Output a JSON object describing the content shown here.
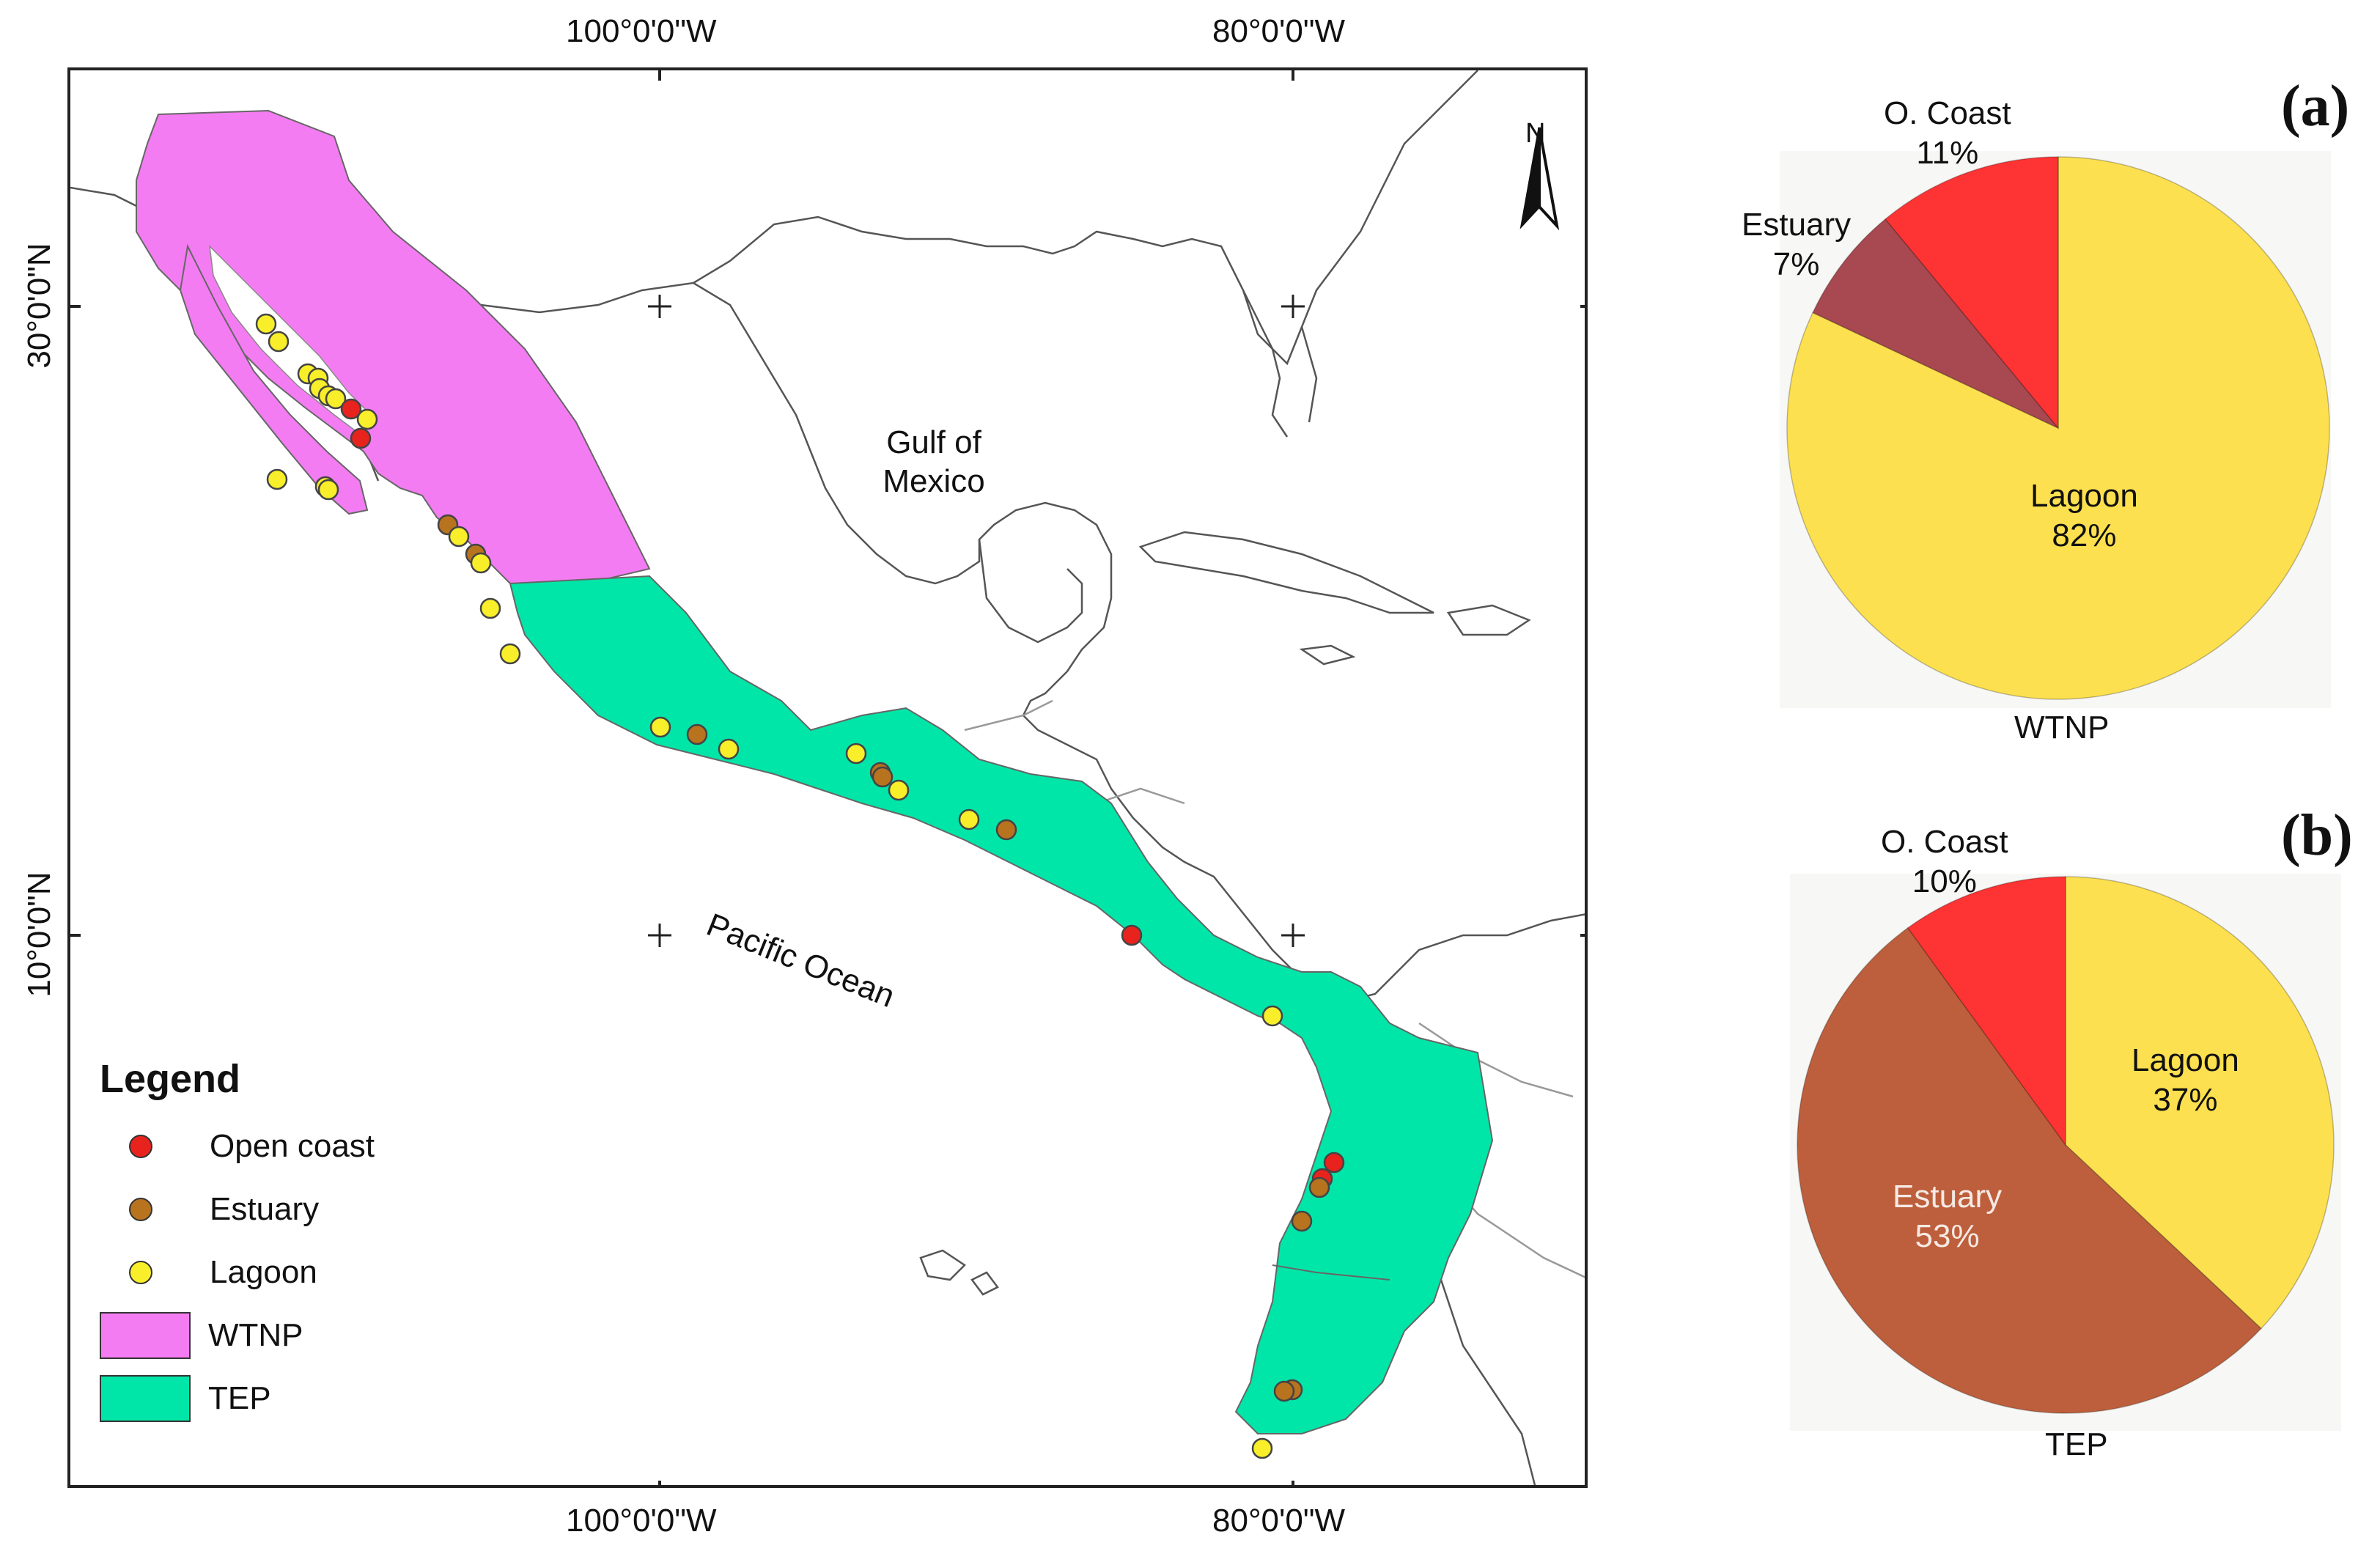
{
  "axes": {
    "lon_100": "100°0'0\"W",
    "lon_80": "80°0'0\"W",
    "lat_30": "30°0'0\"N",
    "lat_10": "10°0'0\"N"
  },
  "map": {
    "gulf_label": "Gulf of\nMexico",
    "ocean_label": "Pacific Ocean",
    "north_letter": "N",
    "colors": {
      "wtnp": "#f47cf2",
      "tep": "#00e6a8",
      "open_coast": "#e8231d",
      "estuary": "#b8731f",
      "lagoon": "#f8ef2a"
    }
  },
  "legend": {
    "title": "Legend",
    "items": [
      {
        "label": "Open coast",
        "type": "dot",
        "color": "#e8231d"
      },
      {
        "label": "Estuary",
        "type": "dot",
        "color": "#b8731f"
      },
      {
        "label": "Lagoon",
        "type": "dot",
        "color": "#f8ef2a"
      },
      {
        "label": "WTNP",
        "type": "rect",
        "color": "#f47cf2"
      },
      {
        "label": "TEP",
        "type": "rect",
        "color": "#00e6a8"
      }
    ]
  },
  "chart_data": [
    {
      "type": "pie",
      "panel": "(a)",
      "caption": "WTNP",
      "slices": [
        {
          "label": "Lagoon",
          "value": 82,
          "color": "#fde04f",
          "text": "82%"
        },
        {
          "label": "Estuary",
          "value": 7,
          "color": "#a84850",
          "text": "7%"
        },
        {
          "label": "O. Coast",
          "value": 11,
          "color": "#fe3333",
          "text": "11%"
        }
      ]
    },
    {
      "type": "pie",
      "panel": "(b)",
      "caption": "TEP",
      "slices": [
        {
          "label": "Lagoon",
          "value": 37,
          "color": "#fde04f",
          "text": "37%"
        },
        {
          "label": "Estuary",
          "value": 53,
          "color": "#bd5f3c",
          "text": "53%"
        },
        {
          "label": "O. Coast",
          "value": 10,
          "color": "#fe3333",
          "text": "10%"
        }
      ]
    }
  ]
}
